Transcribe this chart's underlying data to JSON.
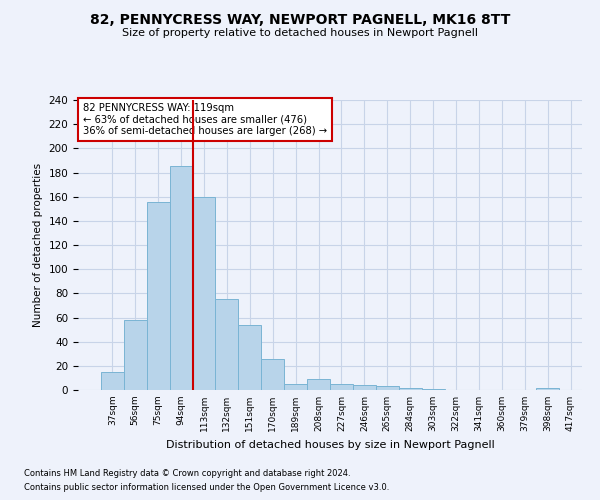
{
  "title1": "82, PENNYCRESS WAY, NEWPORT PAGNELL, MK16 8TT",
  "title2": "Size of property relative to detached houses in Newport Pagnell",
  "xlabel": "Distribution of detached houses by size in Newport Pagnell",
  "ylabel": "Number of detached properties",
  "bar_values": [
    15,
    58,
    156,
    185,
    160,
    75,
    54,
    26,
    5,
    9,
    5,
    4,
    3,
    2,
    1,
    0,
    0,
    0,
    0,
    2
  ],
  "bar_labels": [
    "37sqm",
    "56sqm",
    "75sqm",
    "94sqm",
    "113sqm",
    "132sqm",
    "151sqm",
    "170sqm",
    "189sqm",
    "208sqm",
    "227sqm",
    "246sqm",
    "265sqm",
    "284sqm",
    "303sqm",
    "322sqm",
    "341sqm",
    "360sqm",
    "379sqm",
    "398sqm",
    "417sqm"
  ],
  "bar_color": "#b8d4ea",
  "bar_edge_color": "#7ab4d4",
  "vline_color": "#cc0000",
  "annotation_box_color": "#cc0000",
  "annotation_box_bg": "#ffffff",
  "ylim": [
    0,
    240
  ],
  "yticks": [
    0,
    20,
    40,
    60,
    80,
    100,
    120,
    140,
    160,
    180,
    200,
    220,
    240
  ],
  "footnote1": "Contains HM Land Registry data © Crown copyright and database right 2024.",
  "footnote2": "Contains public sector information licensed under the Open Government Licence v3.0.",
  "bg_color": "#eef2fb",
  "grid_color": "#c8d4e8"
}
